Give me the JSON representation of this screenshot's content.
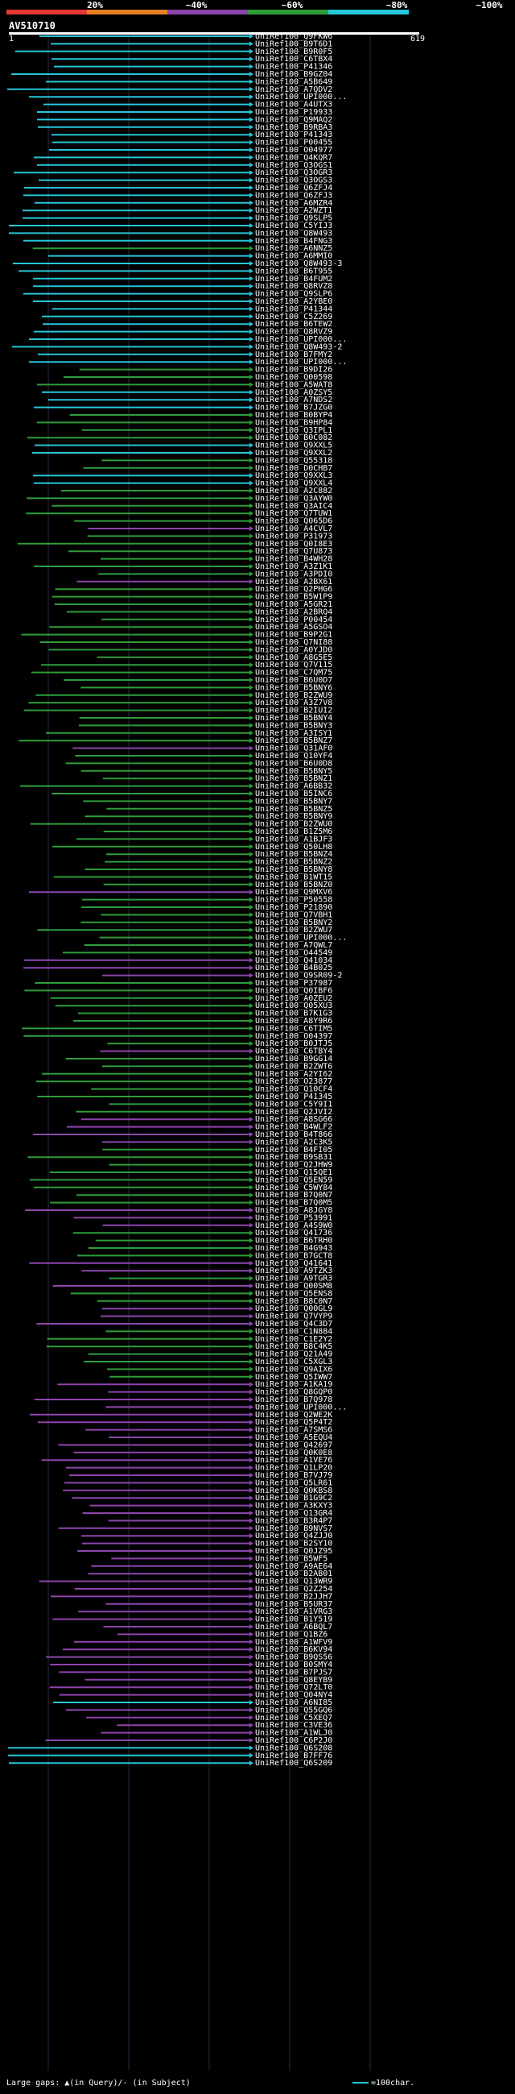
{
  "scale": {
    "labels": [
      "20%",
      "~40%",
      "~60%",
      "~80%",
      "~100%"
    ],
    "colors": [
      "#e53935",
      "#e67e22",
      "#8e44ad",
      "#2e9d3a",
      "#26c6da"
    ]
  },
  "query": {
    "id": "AV510710",
    "start": "1",
    "end": "619"
  },
  "legend": {
    "left": "Large gaps: ▲(in Query)/- (in Subject)",
    "right": "=100char."
  },
  "hits": [
    {
      "id": "UniRef100_Q9FKW6",
      "c": 4
    },
    {
      "id": "UniRef100_B9T6D1",
      "c": 4
    },
    {
      "id": "UniRef100_B9R0F5",
      "c": 4
    },
    {
      "id": "UniRef100_C6TBX4",
      "c": 4
    },
    {
      "id": "UniRef100_P41346",
      "c": 4
    },
    {
      "id": "UniRef100_B9GZ04",
      "c": 4
    },
    {
      "id": "UniRef100_A5B649",
      "c": 4
    },
    {
      "id": "UniRef100_A7QDV2",
      "c": 4
    },
    {
      "id": "UniRef100_UPI000...",
      "c": 4
    },
    {
      "id": "UniRef100_A4UTX3",
      "c": 4
    },
    {
      "id": "UniRef100_P19933",
      "c": 4
    },
    {
      "id": "UniRef100_Q9MAQ2",
      "c": 4
    },
    {
      "id": "UniRef100_B9RBA3",
      "c": 4
    },
    {
      "id": "UniRef100_P41343",
      "c": 4
    },
    {
      "id": "UniRef100_P00455",
      "c": 4
    },
    {
      "id": "UniRef100_O04977",
      "c": 4
    },
    {
      "id": "UniRef100_Q4KQR7",
      "c": 4
    },
    {
      "id": "UniRef100_Q3OGS1",
      "c": 4
    },
    {
      "id": "UniRef100_Q3OGR3",
      "c": 4
    },
    {
      "id": "UniRef100_Q3OGS3",
      "c": 4
    },
    {
      "id": "UniRef100_Q6ZFJ4",
      "c": 4
    },
    {
      "id": "UniRef100_Q6ZFJ3",
      "c": 4
    },
    {
      "id": "UniRef100_A6MZR4",
      "c": 4
    },
    {
      "id": "UniRef100_A2WZT1",
      "c": 4
    },
    {
      "id": "UniRef100_Q9SLP5",
      "c": 4
    },
    {
      "id": "UniRef100_C5YIJ3",
      "c": 4
    },
    {
      "id": "UniRef100_Q8W493",
      "c": 4
    },
    {
      "id": "UniRef100_B4FNG3",
      "c": 4
    },
    {
      "id": "UniRef100_A6NNZ5",
      "c": 3
    },
    {
      "id": "UniRef100_A6MMI0",
      "c": 4
    },
    {
      "id": "UniRef100_Q8W493-3",
      "c": 4
    },
    {
      "id": "UniRef100_B6T955",
      "c": 4
    },
    {
      "id": "UniRef100_B4FUM2",
      "c": 4
    },
    {
      "id": "UniRef100_Q8RVZ8",
      "c": 4
    },
    {
      "id": "UniRef100_Q9SLP6",
      "c": 4
    },
    {
      "id": "UniRef100_A2YBE0",
      "c": 4
    },
    {
      "id": "UniRef100_P41344",
      "c": 4
    },
    {
      "id": "UniRef100_C5Z269",
      "c": 4
    },
    {
      "id": "UniRef100_B6TEW2",
      "c": 4
    },
    {
      "id": "UniRef100_Q8RVZ9",
      "c": 4
    },
    {
      "id": "UniRef100_UPI000...",
      "c": 4
    },
    {
      "id": "UniRef100_Q8W493-2",
      "c": 4
    },
    {
      "id": "UniRef100_B7FMY2",
      "c": 4
    },
    {
      "id": "UniRef100_UPI000...",
      "c": 4
    },
    {
      "id": "UniRef100_B9DI26",
      "c": 3
    },
    {
      "id": "UniRef100_Q00598",
      "c": 3
    },
    {
      "id": "UniRef100_A5WAT8",
      "c": 3
    },
    {
      "id": "UniRef100_A0ZSY5",
      "c": 4
    },
    {
      "id": "UniRef100_A7NDS2",
      "c": 4
    },
    {
      "id": "UniRef100_B7JZG0",
      "c": 4
    },
    {
      "id": "UniRef100_B0BYP4",
      "c": 3
    },
    {
      "id": "UniRef100_B9HP84",
      "c": 3
    },
    {
      "id": "UniRef100_Q3IPL1",
      "c": 3
    },
    {
      "id": "UniRef100_B0C082",
      "c": 3
    },
    {
      "id": "UniRef100_Q9XXL5",
      "c": 4
    },
    {
      "id": "UniRef100_Q9XXL2",
      "c": 4
    },
    {
      "id": "UniRef100_Q55318",
      "c": 3
    },
    {
      "id": "UniRef100_D0CHB7",
      "c": 3
    },
    {
      "id": "UniRef100_Q9XXL3",
      "c": 4
    },
    {
      "id": "UniRef100_Q9XXL4",
      "c": 4
    },
    {
      "id": "UniRef100_A2C882",
      "c": 3
    },
    {
      "id": "UniRef100_Q3AYW0",
      "c": 3
    },
    {
      "id": "UniRef100_Q3AIC4",
      "c": 3
    },
    {
      "id": "UniRef100_Q7TUW1",
      "c": 3
    },
    {
      "id": "UniRef100_Q065D6",
      "c": 3
    },
    {
      "id": "UniRef100_A4CVL7",
      "c": 2
    },
    {
      "id": "UniRef100_P31973",
      "c": 3
    },
    {
      "id": "UniRef100_Q0I8E3",
      "c": 3
    },
    {
      "id": "UniRef100_Q7U873",
      "c": 3
    },
    {
      "id": "UniRef100_B4WH28",
      "c": 3
    },
    {
      "id": "UniRef100_A3Z1K1",
      "c": 3
    },
    {
      "id": "UniRef100_A3PDI0",
      "c": 3
    },
    {
      "id": "UniRef100_A2BX61",
      "c": 2
    },
    {
      "id": "UniRef100_Q2PHG6",
      "c": 3
    },
    {
      "id": "UniRef100_B5W1P9",
      "c": 3
    },
    {
      "id": "UniRef100_A5GR21",
      "c": 3
    },
    {
      "id": "UniRef100_A2BRQ4",
      "c": 3
    },
    {
      "id": "UniRef100_P00454",
      "c": 3
    },
    {
      "id": "UniRef100_A5GSO4",
      "c": 3
    },
    {
      "id": "UniRef100_B9P2G1",
      "c": 3
    },
    {
      "id": "UniRef100_Q7NI88",
      "c": 3
    },
    {
      "id": "UniRef100_A0YJD0",
      "c": 3
    },
    {
      "id": "UniRef100_A8G5E5",
      "c": 3
    },
    {
      "id": "UniRef100_Q7V115",
      "c": 3
    },
    {
      "id": "UniRef100_C7QM75",
      "c": 3
    },
    {
      "id": "UniRef100_B6U0D7",
      "c": 3
    },
    {
      "id": "UniRef100_B5BNY6",
      "c": 3
    },
    {
      "id": "UniRef100_B2ZWU9",
      "c": 3
    },
    {
      "id": "UniRef100_A3Z7V8",
      "c": 3
    },
    {
      "id": "UniRef100_B2IUI2",
      "c": 3
    },
    {
      "id": "UniRef100_B5BNY4",
      "c": 3
    },
    {
      "id": "UniRef100_B5BNY3",
      "c": 3
    },
    {
      "id": "UniRef100_A3ISY1",
      "c": 3
    },
    {
      "id": "UniRef100_B5BNZ7",
      "c": 3
    },
    {
      "id": "UniRef100_Q31AF0",
      "c": 2
    },
    {
      "id": "UniRef100_Q10YF4",
      "c": 3
    },
    {
      "id": "UniRef100_B6U0D8",
      "c": 3
    },
    {
      "id": "UniRef100_B5BNY5",
      "c": 3
    },
    {
      "id": "UniRef100_B5BNZ1",
      "c": 3
    },
    {
      "id": "UniRef100_A6BB32",
      "c": 3
    },
    {
      "id": "UniRef100_B5INC6",
      "c": 3
    },
    {
      "id": "UniRef100_B5BNY7",
      "c": 3
    },
    {
      "id": "UniRef100_B5BNZ5",
      "c": 3
    },
    {
      "id": "UniRef100_B5BNY9",
      "c": 3
    },
    {
      "id": "UniRef100_B2ZWU0",
      "c": 3
    },
    {
      "id": "UniRef100_B1Z5M6",
      "c": 3
    },
    {
      "id": "UniRef100_A1BJF3",
      "c": 3
    },
    {
      "id": "UniRef100_Q50LH8",
      "c": 3
    },
    {
      "id": "UniRef100_B5BNZ4",
      "c": 3
    },
    {
      "id": "UniRef100_B5BNZ2",
      "c": 3
    },
    {
      "id": "UniRef100_B5BNY8",
      "c": 3
    },
    {
      "id": "UniRef100_B1WT15",
      "c": 3
    },
    {
      "id": "UniRef100_B5BNZ0",
      "c": 3
    },
    {
      "id": "UniRef100_Q9MXV6",
      "c": 2
    },
    {
      "id": "UniRef100_P50558",
      "c": 3
    },
    {
      "id": "UniRef100_P21890",
      "c": 3
    },
    {
      "id": "UniRef100_Q7VBH1",
      "c": 3
    },
    {
      "id": "UniRef100_B5BNY2",
      "c": 3
    },
    {
      "id": "UniRef100_B2ZWU7",
      "c": 3
    },
    {
      "id": "UniRef100_UPI000...",
      "c": 3
    },
    {
      "id": "UniRef100_A7QWL7",
      "c": 3
    },
    {
      "id": "UniRef100_O44549",
      "c": 3
    },
    {
      "id": "UniRef100_Q41034",
      "c": 2
    },
    {
      "id": "UniRef100_B4B025",
      "c": 2
    },
    {
      "id": "UniRef100_Q9SR09-2",
      "c": 2
    },
    {
      "id": "UniRef100_P37987",
      "c": 3
    },
    {
      "id": "UniRef100_Q0IBF6",
      "c": 3
    },
    {
      "id": "UniRef100_A0ZEU2",
      "c": 3
    },
    {
      "id": "UniRef100_Q05XU3",
      "c": 3
    },
    {
      "id": "UniRef100_B7K1G3",
      "c": 3
    },
    {
      "id": "UniRef100_A8Y9R6",
      "c": 3
    },
    {
      "id": "UniRef100_C6TIM5",
      "c": 3
    },
    {
      "id": "UniRef100_O04397",
      "c": 3
    },
    {
      "id": "UniRef100_B0JTJ5",
      "c": 3
    },
    {
      "id": "UniRef100_C6TBY4",
      "c": 2
    },
    {
      "id": "UniRef100_B9GG14",
      "c": 3
    },
    {
      "id": "UniRef100_B2ZWT6",
      "c": 3
    },
    {
      "id": "UniRef100_A2YI62",
      "c": 3
    },
    {
      "id": "UniRef100_O23877",
      "c": 3
    },
    {
      "id": "UniRef100_Q10CF4",
      "c": 3
    },
    {
      "id": "UniRef100_P41345",
      "c": 3
    },
    {
      "id": "UniRef100_C5Y9I1",
      "c": 3
    },
    {
      "id": "UniRef100_Q2JVI2",
      "c": 3
    },
    {
      "id": "UniRef100_A8SG66",
      "c": 2
    },
    {
      "id": "UniRef100_B4WLF2",
      "c": 2
    },
    {
      "id": "UniRef100_B4T866",
      "c": 2
    },
    {
      "id": "UniRef100_A2C3K5",
      "c": 2
    },
    {
      "id": "UniRef100_B4FI05",
      "c": 3
    },
    {
      "id": "UniRef100_B9SB31",
      "c": 3
    },
    {
      "id": "UniRef100_Q2JHW9",
      "c": 3
    },
    {
      "id": "UniRef100_Q15QE1",
      "c": 3
    },
    {
      "id": "UniRef100_Q5EN59",
      "c": 3
    },
    {
      "id": "UniRef100_C5WY84",
      "c": 3
    },
    {
      "id": "UniRef100_B7Q0N7",
      "c": 3
    },
    {
      "id": "UniRef100_B7Q0M5",
      "c": 3
    },
    {
      "id": "UniRef100_A8JGY8",
      "c": 2
    },
    {
      "id": "UniRef100_P53991",
      "c": 2
    },
    {
      "id": "UniRef100_A4S9W0",
      "c": 2
    },
    {
      "id": "UniRef100_Q41736",
      "c": 3
    },
    {
      "id": "UniRef100_B6TRH0",
      "c": 3
    },
    {
      "id": "UniRef100_B4G943",
      "c": 3
    },
    {
      "id": "UniRef100_B7GCT8",
      "c": 3
    },
    {
      "id": "UniRef100_Q41641",
      "c": 2
    },
    {
      "id": "UniRef100_A9TZK3",
      "c": 2
    },
    {
      "id": "UniRef100_A9TGR3",
      "c": 3
    },
    {
      "id": "UniRef100_Q00SM8",
      "c": 2
    },
    {
      "id": "UniRef100_Q5ENS8",
      "c": 3
    },
    {
      "id": "UniRef100_B8C0N7",
      "c": 3
    },
    {
      "id": "UniRef100_Q00GL9",
      "c": 2
    },
    {
      "id": "UniRef100_Q7VYP9",
      "c": 2
    },
    {
      "id": "UniRef100_Q4C3D7",
      "c": 2
    },
    {
      "id": "UniRef100_C1N884",
      "c": 3
    },
    {
      "id": "UniRef100_C1E2Y2",
      "c": 3
    },
    {
      "id": "UniRef100_B8C4K5",
      "c": 3
    },
    {
      "id": "UniRef100_Q21A49",
      "c": 3
    },
    {
      "id": "UniRef100_C5XGL3",
      "c": 3
    },
    {
      "id": "UniRef100_Q9AIX6",
      "c": 3
    },
    {
      "id": "UniRef100_Q5IWW7",
      "c": 3
    },
    {
      "id": "UniRef100_A1KA19",
      "c": 2
    },
    {
      "id": "UniRef100_Q8GQP0",
      "c": 2
    },
    {
      "id": "UniRef100_B7Q978",
      "c": 2
    },
    {
      "id": "UniRef100_UPI000...",
      "c": 2
    },
    {
      "id": "UniRef100_Q2WE2K",
      "c": 2
    },
    {
      "id": "UniRef100_Q5P4T2",
      "c": 2
    },
    {
      "id": "UniRef100_A7SMS6",
      "c": 2
    },
    {
      "id": "UniRef100_A5EQU4",
      "c": 2
    },
    {
      "id": "UniRef100_Q42697",
      "c": 2
    },
    {
      "id": "UniRef100_Q0K0E8",
      "c": 2
    },
    {
      "id": "UniRef100_A1VE76",
      "c": 2
    },
    {
      "id": "UniRef100_Q1LP20",
      "c": 2
    },
    {
      "id": "UniRef100_B7VJ79",
      "c": 2
    },
    {
      "id": "UniRef100_Q5LR61",
      "c": 2
    },
    {
      "id": "UniRef100_Q0KBS8",
      "c": 2
    },
    {
      "id": "UniRef100_B1G9C2",
      "c": 2
    },
    {
      "id": "UniRef100_A3KXY3",
      "c": 2
    },
    {
      "id": "UniRef100_Q13GR4",
      "c": 2
    },
    {
      "id": "UniRef100_B3R4P7",
      "c": 2
    },
    {
      "id": "UniRef100_B9NVS7",
      "c": 2
    },
    {
      "id": "UniRef100_Q4ZJJ0",
      "c": 2
    },
    {
      "id": "UniRef100_B2SY10",
      "c": 2
    },
    {
      "id": "UniRef100_Q0JZ95",
      "c": 2
    },
    {
      "id": "UniRef100_B5WF5",
      "c": 2
    },
    {
      "id": "UniRef100_A9AE64",
      "c": 2
    },
    {
      "id": "UniRef100_B2AB01",
      "c": 2
    },
    {
      "id": "UniRef100_Q13WR9",
      "c": 2
    },
    {
      "id": "UniRef100_Q2Z254",
      "c": 2
    },
    {
      "id": "UniRef100_B2JJH7",
      "c": 2
    },
    {
      "id": "UniRef100_B5UR37",
      "c": 2
    },
    {
      "id": "UniRef100_A1VRG3",
      "c": 2
    },
    {
      "id": "UniRef100_B1Y519",
      "c": 2
    },
    {
      "id": "UniRef100_A6BQL7",
      "c": 2
    },
    {
      "id": "UniRef100_Q1BZ6",
      "c": 2
    },
    {
      "id": "UniRef100_A1WFV9",
      "c": 2
    },
    {
      "id": "UniRef100_B6KV94",
      "c": 2
    },
    {
      "id": "UniRef100_B9QS56",
      "c": 2
    },
    {
      "id": "UniRef100_B0SMY4",
      "c": 2
    },
    {
      "id": "UniRef100_B7PJS7",
      "c": 2
    },
    {
      "id": "UniRef100_Q8EYB9",
      "c": 2
    },
    {
      "id": "UniRef100_Q72LT0",
      "c": 2
    },
    {
      "id": "UniRef100_Q04NY4",
      "c": 2
    },
    {
      "id": "UniRef100_A6NI85",
      "c": 4
    },
    {
      "id": "UniRef100_Q55GQ6",
      "c": 2
    },
    {
      "id": "UniRef100_C5XEQ7",
      "c": 2
    },
    {
      "id": "UniRef100_C3VE36",
      "c": 2
    },
    {
      "id": "UniRef100_A1WLJ0",
      "c": 2
    },
    {
      "id": "UniRef100_C6P2J0",
      "c": 2
    },
    {
      "id": "UniRef100_Q6S208",
      "c": 4
    },
    {
      "id": "UniRef100_B7FF76",
      "c": 4
    },
    {
      "id": "UniRef100_Q6S209",
      "c": 4
    }
  ]
}
